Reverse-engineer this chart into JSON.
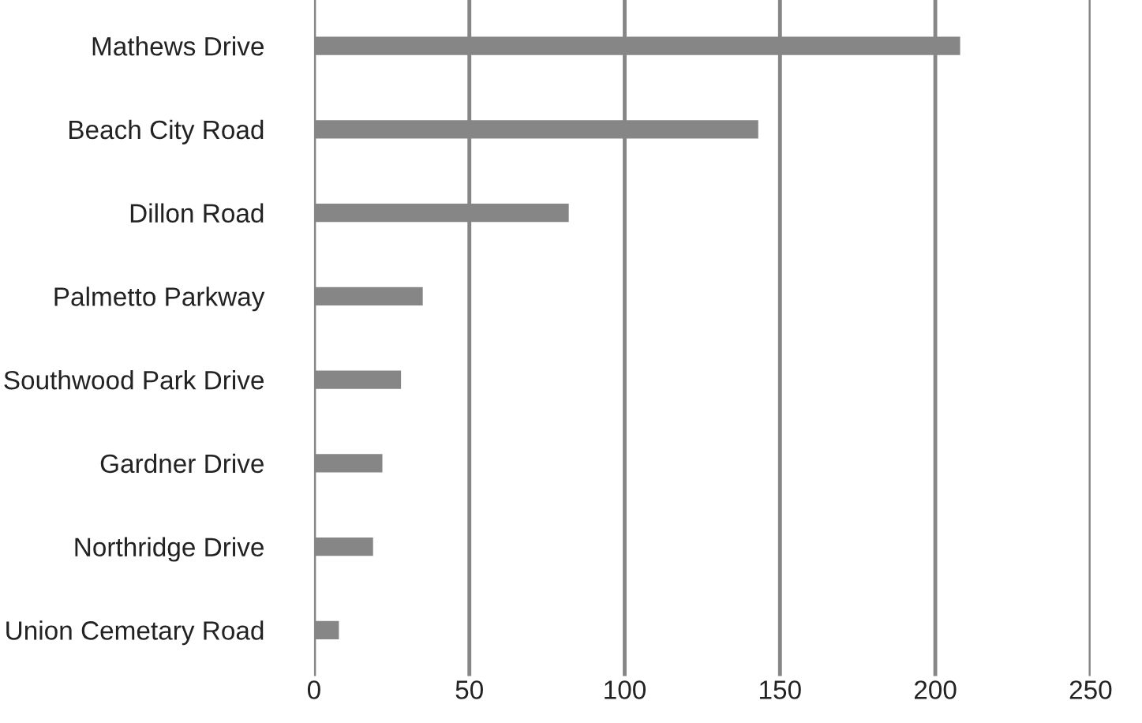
{
  "chart_data": {
    "type": "bar",
    "orientation": "horizontal",
    "categories": [
      "Mathews Drive",
      "Beach City Road",
      "Dillon Road",
      "Palmetto Parkway",
      "Southwood Park Drive",
      "Gardner Drive",
      "Northridge Drive",
      "Union Cemetary Road"
    ],
    "values": [
      208,
      143,
      82,
      35,
      28,
      22,
      19,
      8
    ],
    "color": "#868686",
    "xlim": [
      0,
      250
    ],
    "xticks": [
      0,
      50,
      100,
      150,
      200,
      250
    ],
    "grid": "x"
  }
}
